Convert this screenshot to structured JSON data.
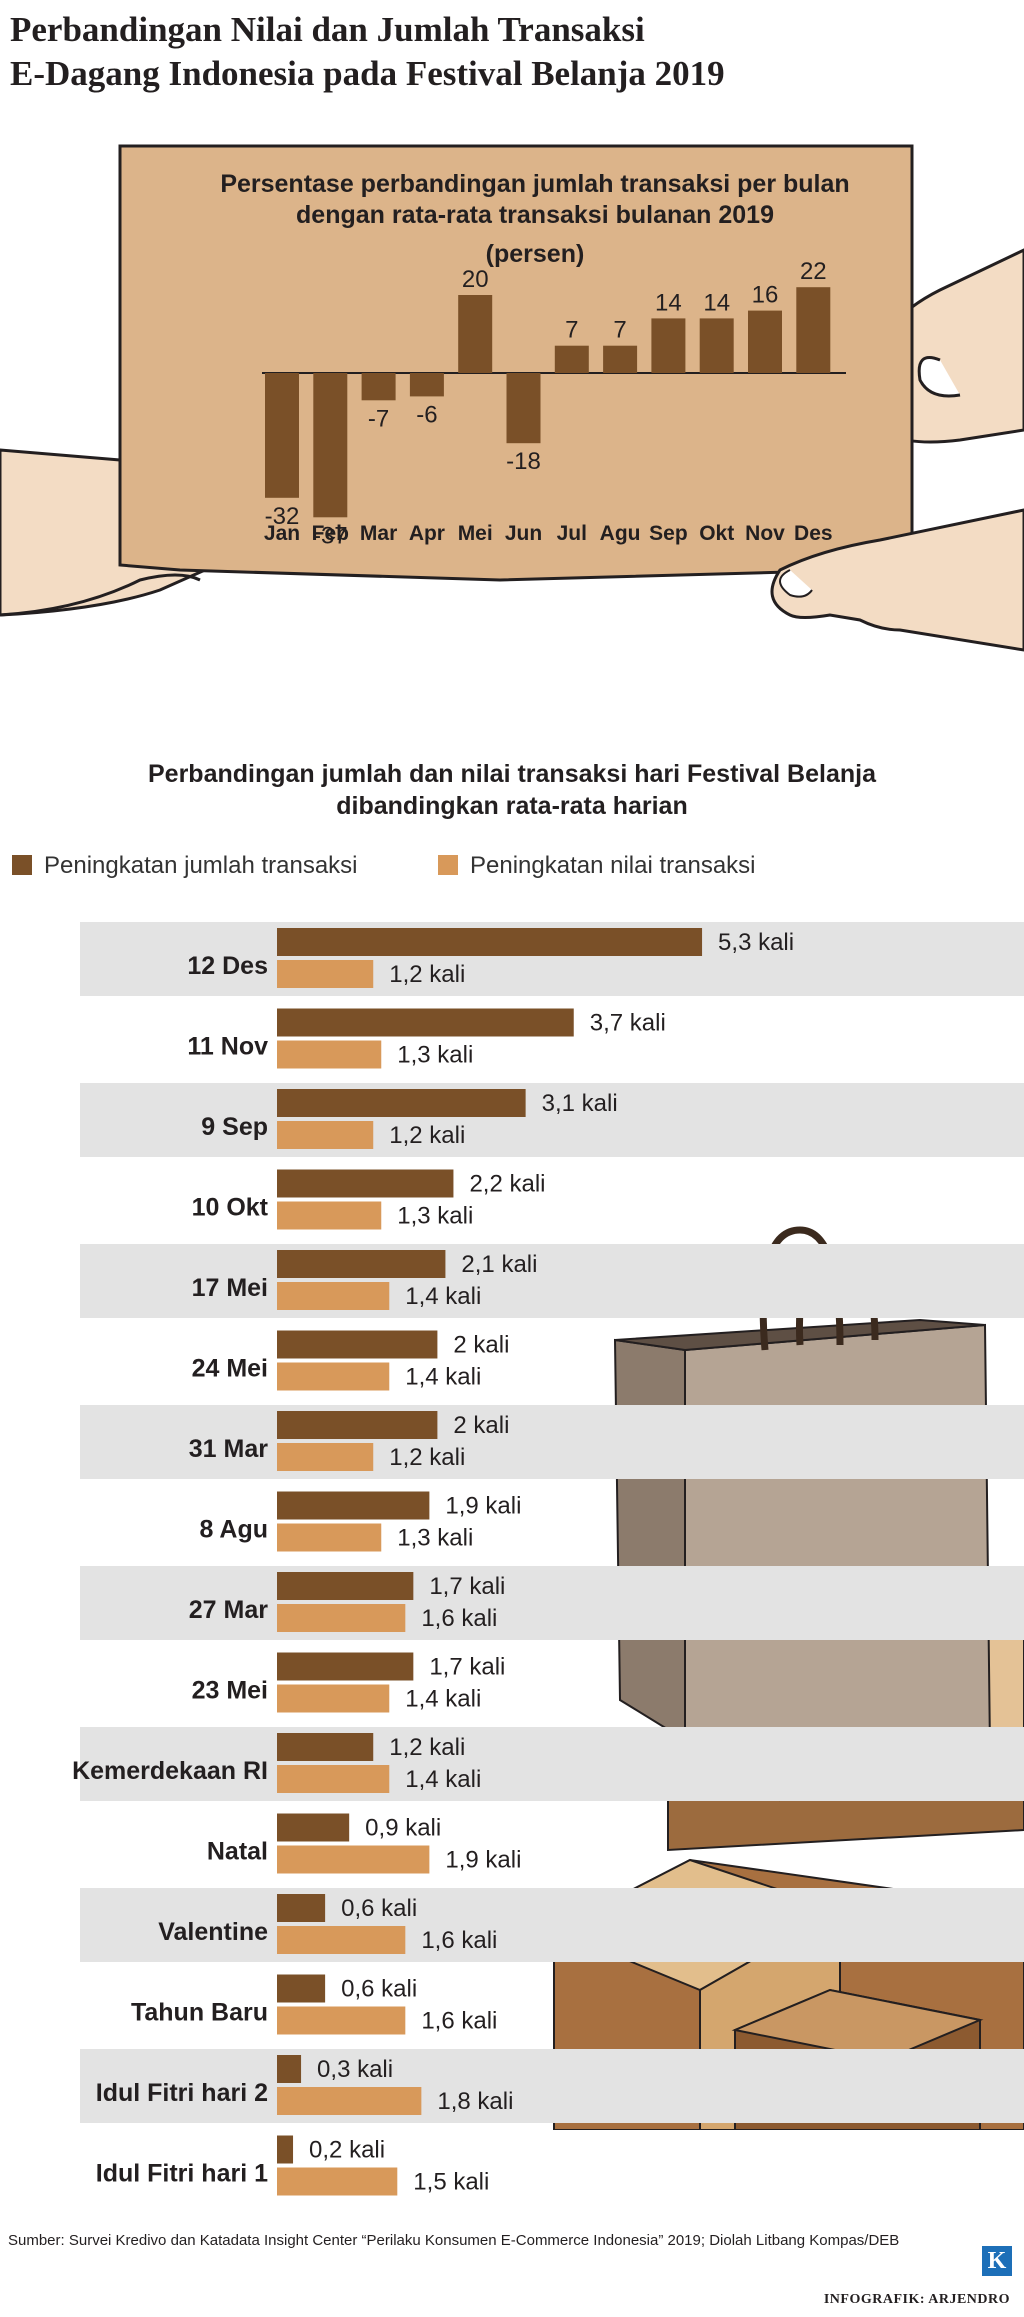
{
  "page": {
    "title_line1": "Perbandingan Nilai dan Jumlah Transaksi",
    "title_line2": "E-Dagang Indonesia pada Festival Belanja 2019",
    "source": "Sumber: Survei Kredivo dan Katadata Insight Center “Perilaku Konsumen E-Commerce Indonesia” 2019; Diolah Litbang Kompas/DEB",
    "credit": "INFOGRAFIK: ARJENDRO",
    "logo_text": "K"
  },
  "colors": {
    "dark_bar": "#7a5028",
    "light_bar": "#d8995a",
    "board": "#dcb48a",
    "stripe": "#e3e3e3"
  },
  "chart_data": [
    {
      "type": "bar",
      "title_lines": [
        "Persentase perbandingan jumlah transaksi per bulan",
        "dengan rata-rata transaksi bulanan 2019",
        "(persen)"
      ],
      "categories": [
        "Jan",
        "Feb",
        "Mar",
        "Apr",
        "Mei",
        "Jun",
        "Jul",
        "Agu",
        "Sep",
        "Okt",
        "Nov",
        "Des"
      ],
      "values": [
        -32,
        -37,
        -7,
        -6,
        20,
        -18,
        7,
        7,
        14,
        14,
        16,
        22
      ],
      "ylim": [
        -40,
        25
      ]
    },
    {
      "type": "bar",
      "orientation": "horizontal",
      "title_lines": [
        "Perbandingan jumlah dan nilai transaksi hari Festival Belanja",
        "dibandingkan rata-rata harian"
      ],
      "value_suffix": " kali",
      "categories": [
        "12 Des",
        "11 Nov",
        "9 Sep",
        "10 Okt",
        "17 Mei",
        "24 Mei",
        "31 Mar",
        "8 Agu",
        "27 Mar",
        "23 Mei",
        "Kemerdekaan RI",
        "Natal",
        "Valentine",
        "Tahun Baru",
        "Idul Fitri hari 2",
        "Idul Fitri hari 1"
      ],
      "series": [
        {
          "name": "Peningkatan jumlah transaksi",
          "values": [
            5.3,
            3.7,
            3.1,
            2.2,
            2.1,
            2,
            2,
            1.9,
            1.7,
            1.7,
            1.2,
            0.9,
            0.6,
            0.6,
            0.3,
            0.2
          ]
        },
        {
          "name": "Peningkatan nilai transaksi",
          "values": [
            1.2,
            1.3,
            1.2,
            1.3,
            1.4,
            1.4,
            1.2,
            1.3,
            1.6,
            1.4,
            1.4,
            1.9,
            1.6,
            1.6,
            1.8,
            1.5
          ]
        }
      ]
    }
  ]
}
